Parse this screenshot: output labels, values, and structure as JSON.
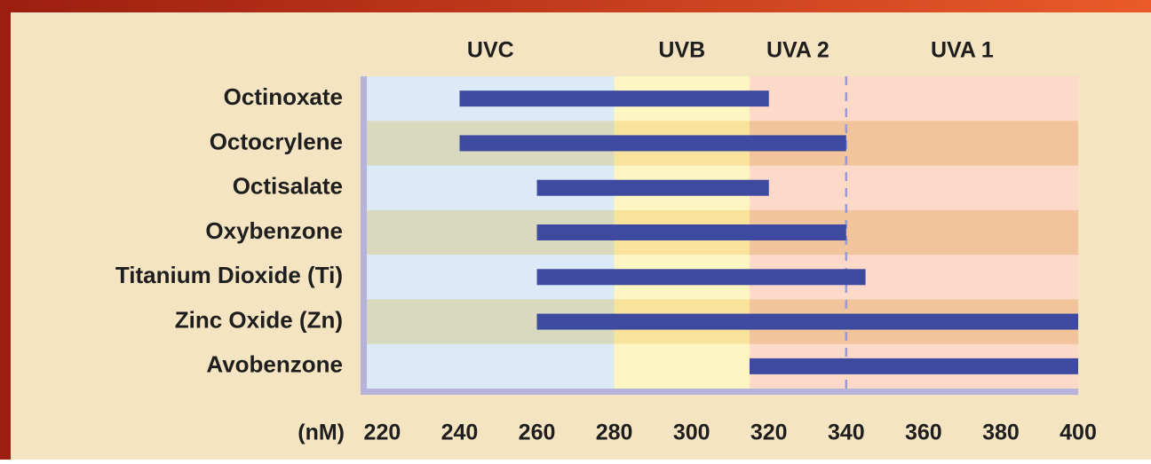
{
  "chart_data": {
    "type": "range_bar",
    "categories": [
      "Octinoxate",
      "Octocrylene",
      "Octisalate",
      "Oxybenzone",
      "Titanium Dioxide (Ti)",
      "Zinc Oxide (Zn)",
      "Avobenzone"
    ],
    "start": [
      240,
      240,
      260,
      260,
      260,
      260,
      315
    ],
    "end": [
      320,
      340,
      320,
      340,
      345,
      400,
      400
    ],
    "color": "#3d4aa0",
    "bands": [
      {
        "name": "UVC",
        "end": 280,
        "color": "#dce9f6",
        "alt_color": "#d8d9bf"
      },
      {
        "name": "UVB",
        "end": 315,
        "color": "#fdf5c2",
        "alt_color": "#f8e29c"
      },
      {
        "name": "UVA 2",
        "end": 340,
        "color": "#fdd9c9",
        "alt_color": "#f1c49b"
      },
      {
        "name": "UVA 1",
        "end": 400,
        "color": "#fdd9c9",
        "alt_color": "#f1c49b"
      }
    ],
    "xlabel": "(nM)",
    "xlim": [
      216,
      400
    ],
    "xticks": [
      220,
      240,
      260,
      280,
      300,
      320,
      340,
      360,
      380,
      400
    ]
  }
}
